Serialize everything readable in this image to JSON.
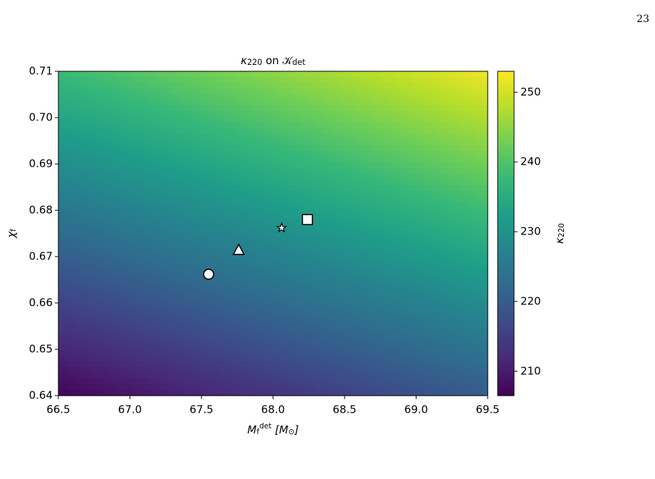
{
  "page_number": "23",
  "chart_data": {
    "type": "heatmap",
    "title": [
      "κ",
      "220",
      " on ",
      "𝒦",
      "det"
    ],
    "x_label": [
      "M",
      "f",
      "det",
      " [M",
      "⊙",
      "]"
    ],
    "y_label": [
      "χ",
      "f"
    ],
    "colorbar_label": [
      "κ",
      "220"
    ],
    "colormap": "viridis",
    "xlim": [
      66.5,
      69.5
    ],
    "ylim": [
      0.64,
      0.71
    ],
    "xticks": [
      66.5,
      {
        "value": 67,
        "label": "67.0"
      },
      67.5,
      {
        "value": 68,
        "label": "68.0"
      },
      68.5,
      {
        "value": 69,
        "label": "69.0"
      },
      69.5
    ],
    "yticks": [
      0.64,
      0.65,
      0.66,
      0.67,
      0.68,
      0.69,
      {
        "value": 0.7,
        "label": "0.70"
      },
      0.71
    ],
    "x": [
      66.5,
      69.5
    ],
    "y": [
      0.64,
      0.71
    ],
    "z": [
      [
        207,
        220
      ],
      [
        238,
        252
      ]
    ],
    "clim": [
      206.5,
      253
    ],
    "cticks": [
      210,
      220,
      230,
      240,
      250
    ],
    "points": [
      {
        "x": 67.55,
        "y": 0.6662,
        "marker": "circle"
      },
      {
        "x": 67.76,
        "y": 0.6714,
        "marker": "triangle"
      },
      {
        "x": 68.06,
        "y": 0.6762,
        "marker": "star"
      },
      {
        "x": 68.24,
        "y": 0.678,
        "marker": "square"
      }
    ]
  }
}
